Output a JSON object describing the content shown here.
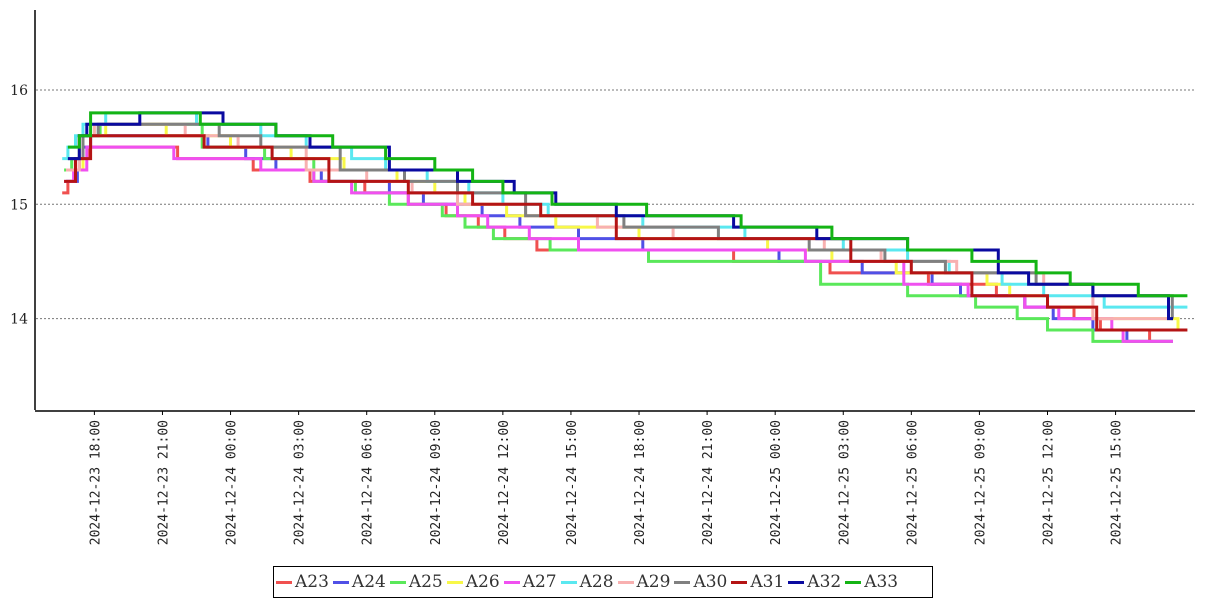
{
  "chart_data": {
    "type": "line",
    "step": true,
    "grid": "horizontal dotted",
    "legend_position": "bottom-center",
    "ylim": [
      13.2,
      16.7
    ],
    "yticks": [
      14,
      15,
      16
    ],
    "ytick_labels": [
      "14",
      "15",
      "16"
    ],
    "xlim": [
      "2024-12-23 16:00",
      "2024-12-25 18:30"
    ],
    "xticks": [
      "2024-12-23 18:00",
      "2024-12-23 21:00",
      "2024-12-24 00:00",
      "2024-12-24 03:00",
      "2024-12-24 06:00",
      "2024-12-24 09:00",
      "2024-12-24 12:00",
      "2024-12-24 15:00",
      "2024-12-24 18:00",
      "2024-12-24 21:00",
      "2024-12-25 00:00",
      "2024-12-25 03:00",
      "2024-12-25 06:00",
      "2024-12-25 09:00",
      "2024-12-25 12:00",
      "2024-12-25 15:00"
    ],
    "xtick_labels": [
      "2024-12-23  18:00",
      "2024-12-23  21:00",
      "2024-12-24  00:00",
      "2024-12-24  03:00",
      "2024-12-24  06:00",
      "2024-12-24  09:00",
      "2024-12-24  12:00",
      "2024-12-24  15:00",
      "2024-12-24  18:00",
      "2024-12-24  21:00",
      "2024-12-25  00:00",
      "2024-12-25  03:00",
      "2024-12-25  06:00",
      "2024-12-25  09:00",
      "2024-12-25  12:00",
      "2024-12-25  15:00"
    ],
    "series": [
      {
        "name": "A23",
        "color": "#f0504f",
        "points": [
          [
            "2024-12-23 16:35",
            15.1
          ],
          [
            "2024-12-23 16:50",
            15.2
          ],
          [
            "2024-12-23 17:10",
            15.3
          ],
          [
            "2024-12-23 17:20",
            15.4
          ],
          [
            "2024-12-23 17:45",
            15.5
          ],
          [
            "2024-12-23 21:40",
            15.4
          ],
          [
            "2024-12-24 01:00",
            15.3
          ],
          [
            "2024-12-24 03:30",
            15.2
          ],
          [
            "2024-12-24 05:55",
            15.1
          ],
          [
            "2024-12-24 07:50",
            15.0
          ],
          [
            "2024-12-24 09:30",
            14.9
          ],
          [
            "2024-12-24 10:55",
            14.8
          ],
          [
            "2024-12-24 12:05",
            14.7
          ],
          [
            "2024-12-24 13:30",
            14.6
          ],
          [
            "2024-12-24 22:10",
            14.5
          ],
          [
            "2024-12-25 02:25",
            14.4
          ],
          [
            "2024-12-25 06:45",
            14.3
          ],
          [
            "2024-12-25 09:45",
            14.2
          ],
          [
            "2024-12-25 11:00",
            14.1
          ],
          [
            "2024-12-25 13:10",
            14.0
          ],
          [
            "2024-12-25 14:20",
            13.9
          ],
          [
            "2024-12-25 16:30",
            13.8
          ]
        ]
      },
      {
        "name": "A24",
        "color": "#5050e6",
        "points": [
          [
            "2024-12-23 16:45",
            15.2
          ],
          [
            "2024-12-23 17:15",
            15.3
          ],
          [
            "2024-12-23 17:30",
            15.5
          ],
          [
            "2024-12-23 17:50",
            15.6
          ],
          [
            "2024-12-23 20:10",
            15.6
          ],
          [
            "2024-12-23 23:00",
            15.5
          ],
          [
            "2024-12-24 00:40",
            15.4
          ],
          [
            "2024-12-24 02:00",
            15.3
          ],
          [
            "2024-12-24 04:00",
            15.2
          ],
          [
            "2024-12-24 07:00",
            15.1
          ],
          [
            "2024-12-24 08:30",
            15.0
          ],
          [
            "2024-12-24 11:05",
            14.9
          ],
          [
            "2024-12-24 12:45",
            14.8
          ],
          [
            "2024-12-24 15:20",
            14.7
          ],
          [
            "2024-12-24 18:10",
            14.6
          ],
          [
            "2024-12-25 00:10",
            14.5
          ],
          [
            "2024-12-25 03:50",
            14.4
          ],
          [
            "2024-12-25 06:55",
            14.3
          ],
          [
            "2024-12-25 08:10",
            14.2
          ],
          [
            "2024-12-25 11:00",
            14.1
          ],
          [
            "2024-12-25 12:15",
            14.0
          ],
          [
            "2024-12-25 14:00",
            13.9
          ],
          [
            "2024-12-25 15:30",
            13.8
          ]
        ]
      },
      {
        "name": "A25",
        "color": "#5ae85a",
        "points": [
          [
            "2024-12-23 16:40",
            15.3
          ],
          [
            "2024-12-23 17:00",
            15.4
          ],
          [
            "2024-12-23 17:20",
            15.6
          ],
          [
            "2024-12-23 18:15",
            15.7
          ],
          [
            "2024-12-23 22:45",
            15.5
          ],
          [
            "2024-12-24 01:30",
            15.4
          ],
          [
            "2024-12-24 03:40",
            15.2
          ],
          [
            "2024-12-24 05:30",
            15.1
          ],
          [
            "2024-12-24 07:00",
            15.0
          ],
          [
            "2024-12-24 09:20",
            14.9
          ],
          [
            "2024-12-24 10:20",
            14.8
          ],
          [
            "2024-12-24 11:35",
            14.7
          ],
          [
            "2024-12-24 14:05",
            14.6
          ],
          [
            "2024-12-24 18:25",
            14.5
          ],
          [
            "2024-12-24 20:00",
            14.5
          ],
          [
            "2024-12-25 02:00",
            14.3
          ],
          [
            "2024-12-25 05:50",
            14.2
          ],
          [
            "2024-12-25 08:50",
            14.1
          ],
          [
            "2024-12-25 10:40",
            14.0
          ],
          [
            "2024-12-25 12:00",
            13.9
          ],
          [
            "2024-12-25 14:00",
            13.8
          ]
        ]
      },
      {
        "name": "A26",
        "color": "#f8f848",
        "points": [
          [
            "2024-12-23 16:50",
            15.3
          ],
          [
            "2024-12-23 17:30",
            15.6
          ],
          [
            "2024-12-23 18:30",
            15.7
          ],
          [
            "2024-12-23 21:10",
            15.6
          ],
          [
            "2024-12-24 00:00",
            15.5
          ],
          [
            "2024-12-24 02:40",
            15.4
          ],
          [
            "2024-12-24 05:00",
            15.3
          ],
          [
            "2024-12-24 07:20",
            15.2
          ],
          [
            "2024-12-24 09:00",
            15.1
          ],
          [
            "2024-12-24 10:20",
            15.0
          ],
          [
            "2024-12-24 12:10",
            14.9
          ],
          [
            "2024-12-24 14:20",
            14.8
          ],
          [
            "2024-12-24 18:00",
            14.7
          ],
          [
            "2024-12-24 23:40",
            14.6
          ],
          [
            "2024-12-25 02:30",
            14.5
          ],
          [
            "2024-12-25 05:20",
            14.4
          ],
          [
            "2024-12-25 09:20",
            14.3
          ],
          [
            "2024-12-25 10:20",
            14.2
          ],
          [
            "2024-12-25 12:00",
            14.1
          ],
          [
            "2024-12-25 14:00",
            14.0
          ],
          [
            "2024-12-25 17:45",
            13.9
          ]
        ]
      },
      {
        "name": "A27",
        "color": "#f050f0",
        "points": [
          [
            "2024-12-23 16:40",
            15.2
          ],
          [
            "2024-12-23 17:05",
            15.3
          ],
          [
            "2024-12-23 17:40",
            15.5
          ],
          [
            "2024-12-23 21:30",
            15.4
          ],
          [
            "2024-12-24 01:20",
            15.3
          ],
          [
            "2024-12-24 03:40",
            15.2
          ],
          [
            "2024-12-24 05:20",
            15.1
          ],
          [
            "2024-12-24 07:50",
            15.0
          ],
          [
            "2024-12-24 10:00",
            14.9
          ],
          [
            "2024-12-24 11:20",
            14.8
          ],
          [
            "2024-12-24 13:10",
            14.7
          ],
          [
            "2024-12-24 15:20",
            14.6
          ],
          [
            "2024-12-25 01:20",
            14.5
          ],
          [
            "2024-12-25 05:40",
            14.3
          ],
          [
            "2024-12-25 08:30",
            14.2
          ],
          [
            "2024-12-25 11:00",
            14.1
          ],
          [
            "2024-12-25 12:30",
            14.0
          ],
          [
            "2024-12-25 14:50",
            13.9
          ],
          [
            "2024-12-25 15:20",
            13.8
          ]
        ]
      },
      {
        "name": "A28",
        "color": "#5ae8f0",
        "points": [
          [
            "2024-12-23 16:35",
            15.4
          ],
          [
            "2024-12-23 16:50",
            15.5
          ],
          [
            "2024-12-23 17:10",
            15.6
          ],
          [
            "2024-12-23 17:30",
            15.7
          ],
          [
            "2024-12-23 18:30",
            15.8
          ],
          [
            "2024-12-23 22:30",
            15.7
          ],
          [
            "2024-12-24 01:20",
            15.6
          ],
          [
            "2024-12-24 03:20",
            15.5
          ],
          [
            "2024-12-24 05:20",
            15.4
          ],
          [
            "2024-12-24 06:50",
            15.3
          ],
          [
            "2024-12-24 08:40",
            15.2
          ],
          [
            "2024-12-24 10:30",
            15.1
          ],
          [
            "2024-12-24 12:00",
            15.0
          ],
          [
            "2024-12-24 14:00",
            14.9
          ],
          [
            "2024-12-24 18:10",
            14.8
          ],
          [
            "2024-12-24 22:40",
            14.7
          ],
          [
            "2024-12-25 03:00",
            14.6
          ],
          [
            "2024-12-25 05:50",
            14.5
          ],
          [
            "2024-12-25 07:40",
            14.4
          ],
          [
            "2024-12-25 10:00",
            14.3
          ],
          [
            "2024-12-25 11:50",
            14.2
          ],
          [
            "2024-12-25 14:30",
            14.1
          ],
          [
            "2024-12-25 18:10",
            14.1
          ]
        ]
      },
      {
        "name": "A29",
        "color": "#f8b0b0",
        "points": [
          [
            "2024-12-23 16:45",
            15.3
          ],
          [
            "2024-12-23 17:20",
            15.6
          ],
          [
            "2024-12-23 18:00",
            15.7
          ],
          [
            "2024-12-23 22:00",
            15.6
          ],
          [
            "2024-12-24 00:20",
            15.5
          ],
          [
            "2024-12-24 03:20",
            15.3
          ],
          [
            "2024-12-24 06:00",
            15.2
          ],
          [
            "2024-12-24 08:00",
            15.1
          ],
          [
            "2024-12-24 10:00",
            15.0
          ],
          [
            "2024-12-24 13:00",
            14.9
          ],
          [
            "2024-12-24 16:10",
            14.8
          ],
          [
            "2024-12-24 19:30",
            14.7
          ],
          [
            "2024-12-25 02:10",
            14.6
          ],
          [
            "2024-12-25 04:40",
            14.5
          ],
          [
            "2024-12-25 08:00",
            14.4
          ],
          [
            "2024-12-25 11:50",
            14.3
          ],
          [
            "2024-12-25 14:00",
            14.0
          ],
          [
            "2024-12-25 16:20",
            14.0
          ]
        ]
      },
      {
        "name": "A30",
        "color": "#808080",
        "points": [
          [
            "2024-12-23 16:50",
            15.4
          ],
          [
            "2024-12-23 17:30",
            15.6
          ],
          [
            "2024-12-23 18:10",
            15.7
          ],
          [
            "2024-12-23 23:30",
            15.6
          ],
          [
            "2024-12-24 01:20",
            15.5
          ],
          [
            "2024-12-24 04:50",
            15.3
          ],
          [
            "2024-12-24 07:40",
            15.2
          ],
          [
            "2024-12-24 10:00",
            15.1
          ],
          [
            "2024-12-24 13:00",
            14.9
          ],
          [
            "2024-12-24 17:20",
            14.8
          ],
          [
            "2024-12-24 21:30",
            14.7
          ],
          [
            "2024-12-25 01:30",
            14.6
          ],
          [
            "2024-12-25 04:50",
            14.5
          ],
          [
            "2024-12-25 07:30",
            14.4
          ],
          [
            "2024-12-25 11:30",
            14.3
          ],
          [
            "2024-12-25 14:00",
            14.2
          ],
          [
            "2024-12-25 17:30",
            14.0
          ]
        ]
      },
      {
        "name": "A31",
        "color": "#b41414",
        "points": [
          [
            "2024-12-23 16:40",
            15.2
          ],
          [
            "2024-12-23 17:10",
            15.4
          ],
          [
            "2024-12-23 17:50",
            15.6
          ],
          [
            "2024-12-23 22:50",
            15.5
          ],
          [
            "2024-12-24 01:50",
            15.4
          ],
          [
            "2024-12-24 04:20",
            15.2
          ],
          [
            "2024-12-24 07:50",
            15.1
          ],
          [
            "2024-12-24 10:40",
            15.0
          ],
          [
            "2024-12-24 13:40",
            14.9
          ],
          [
            "2024-12-24 17:00",
            14.7
          ],
          [
            "2024-12-24 18:00",
            14.7
          ],
          [
            "2024-12-25 03:20",
            14.5
          ],
          [
            "2024-12-25 06:00",
            14.4
          ],
          [
            "2024-12-25 08:40",
            14.2
          ],
          [
            "2024-12-25 12:00",
            14.1
          ],
          [
            "2024-12-25 14:10",
            13.9
          ],
          [
            "2024-12-25 18:10",
            13.9
          ]
        ]
      },
      {
        "name": "A32",
        "color": "#0a0aa0",
        "points": [
          [
            "2024-12-23 16:50",
            15.4
          ],
          [
            "2024-12-23 17:20",
            15.6
          ],
          [
            "2024-12-23 17:40",
            15.7
          ],
          [
            "2024-12-23 20:00",
            15.8
          ],
          [
            "2024-12-23 23:40",
            15.7
          ],
          [
            "2024-12-24 02:00",
            15.6
          ],
          [
            "2024-12-24 03:30",
            15.5
          ],
          [
            "2024-12-24 07:00",
            15.3
          ],
          [
            "2024-12-24 10:00",
            15.2
          ],
          [
            "2024-12-24 12:30",
            15.1
          ],
          [
            "2024-12-24 14:20",
            15.0
          ],
          [
            "2024-12-24 17:00",
            14.9
          ],
          [
            "2024-12-24 22:10",
            14.8
          ],
          [
            "2024-12-25 01:50",
            14.7
          ],
          [
            "2024-12-25 05:50",
            14.6
          ],
          [
            "2024-12-25 09:50",
            14.4
          ],
          [
            "2024-12-25 11:10",
            14.3
          ],
          [
            "2024-12-25 14:00",
            14.2
          ],
          [
            "2024-12-25 17:20",
            14.0
          ]
        ]
      },
      {
        "name": "A33",
        "color": "#14b414",
        "points": [
          [
            "2024-12-23 16:50",
            15.5
          ],
          [
            "2024-12-23 17:20",
            15.6
          ],
          [
            "2024-12-23 17:50",
            15.8
          ],
          [
            "2024-12-23 22:40",
            15.7
          ],
          [
            "2024-12-24 02:00",
            15.6
          ],
          [
            "2024-12-24 04:30",
            15.5
          ],
          [
            "2024-12-24 06:50",
            15.4
          ],
          [
            "2024-12-24 09:00",
            15.3
          ],
          [
            "2024-12-24 10:40",
            15.2
          ],
          [
            "2024-12-24 12:00",
            15.1
          ],
          [
            "2024-12-24 14:10",
            15.0
          ],
          [
            "2024-12-24 17:30",
            15.0
          ],
          [
            "2024-12-24 18:20",
            14.9
          ],
          [
            "2024-12-24 22:30",
            14.8
          ],
          [
            "2024-12-25 02:30",
            14.7
          ],
          [
            "2024-12-25 05:50",
            14.6
          ],
          [
            "2024-12-25 08:40",
            14.5
          ],
          [
            "2024-12-25 11:30",
            14.4
          ],
          [
            "2024-12-25 13:00",
            14.3
          ],
          [
            "2024-12-25 16:00",
            14.2
          ],
          [
            "2024-12-25 18:10",
            14.2
          ]
        ]
      }
    ]
  }
}
